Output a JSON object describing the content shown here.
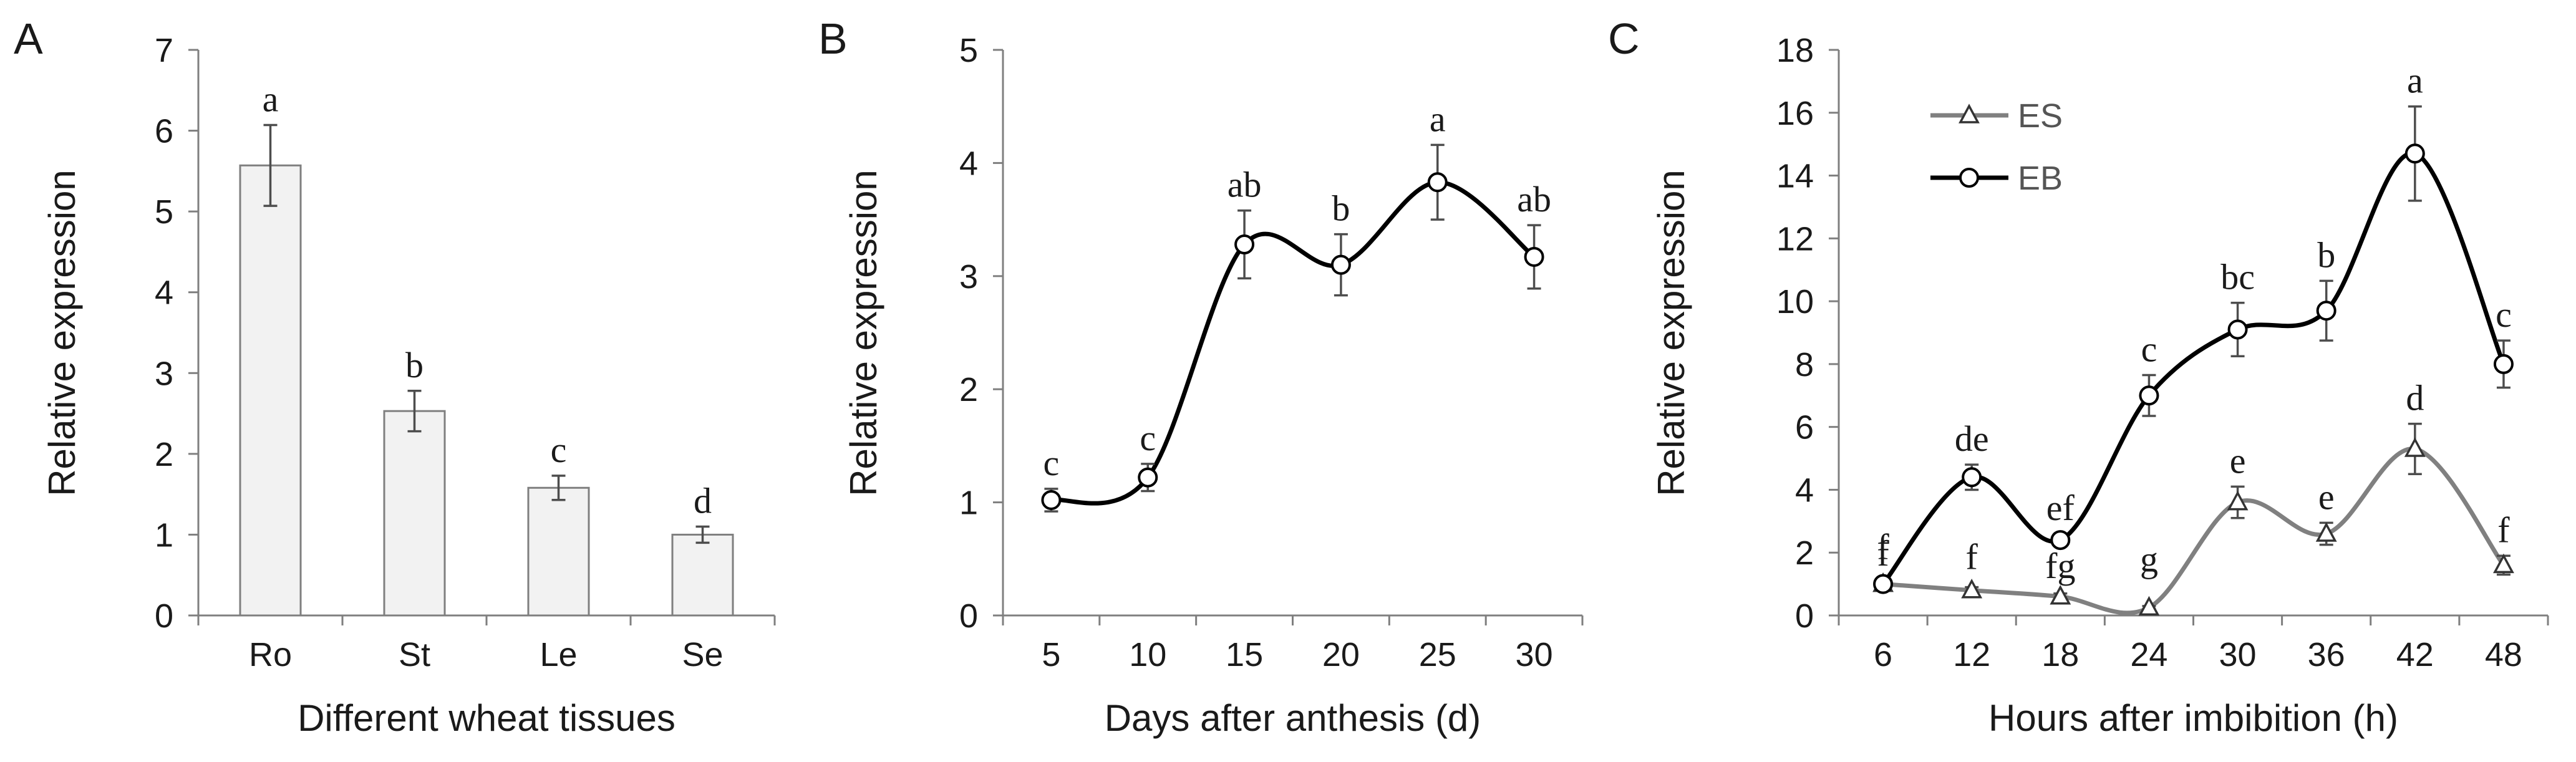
{
  "colors": {
    "axis": "#7f7f7f",
    "bar_fill": "#f2f2f2",
    "bar_stroke": "#7f7f7f",
    "eb_line": "#000000",
    "es_line": "#808080",
    "error_bar": "#4d4d4d"
  },
  "chart_data": [
    {
      "panel": "A",
      "type": "bar",
      "xlabel": "Different wheat tissues",
      "ylabel": "Relative expression",
      "ylim": [
        0,
        7
      ],
      "yticks": [
        "0",
        "1",
        "2",
        "3",
        "4",
        "5",
        "6",
        "7"
      ],
      "categories": [
        "Ro",
        "St",
        "Le",
        "Se"
      ],
      "values": [
        5.57,
        2.53,
        1.58,
        1.0
      ],
      "errors": [
        0.5,
        0.25,
        0.15,
        0.1
      ],
      "letters": [
        "a",
        "b",
        "c",
        "d"
      ]
    },
    {
      "panel": "B",
      "type": "line",
      "xlabel": "Days after anthesis (d)",
      "ylabel": "Relative expression",
      "ylim": [
        0,
        5
      ],
      "yticks": [
        "0",
        "1",
        "2",
        "3",
        "4",
        "5"
      ],
      "categories": [
        "5",
        "10",
        "15",
        "20",
        "25",
        "30"
      ],
      "series": [
        {
          "name": "",
          "values": [
            1.02,
            1.22,
            3.28,
            3.1,
            3.83,
            3.17
          ],
          "errors": [
            0.1,
            0.12,
            0.3,
            0.27,
            0.33,
            0.28
          ],
          "letters": [
            "c",
            "c",
            "ab",
            "b",
            "a",
            "ab"
          ]
        }
      ]
    },
    {
      "panel": "C",
      "type": "line",
      "xlabel": "Hours after imbibition (h)",
      "ylabel": "Relative expression",
      "ylim": [
        0,
        18
      ],
      "yticks": [
        "0",
        "2",
        "4",
        "6",
        "8",
        "10",
        "12",
        "14",
        "16",
        "18"
      ],
      "categories": [
        "6",
        "12",
        "18",
        "24",
        "30",
        "36",
        "42",
        "48"
      ],
      "legend": [
        "ES",
        "EB"
      ],
      "series": [
        {
          "name": "ES",
          "marker": "triangle",
          "values": [
            1.0,
            0.8,
            0.6,
            0.25,
            3.6,
            2.6,
            5.3,
            1.6
          ],
          "errors": [
            0.1,
            0.1,
            0.1,
            0.05,
            0.5,
            0.35,
            0.8,
            0.3
          ],
          "letters": [
            "",
            "",
            "fg",
            "g",
            "e",
            "e",
            "d",
            "f"
          ]
        },
        {
          "name": "EB",
          "marker": "circle",
          "values": [
            1.0,
            4.4,
            2.4,
            7.0,
            9.1,
            9.7,
            14.7,
            8.0
          ],
          "errors": [
            0.15,
            0.4,
            0.2,
            0.65,
            0.85,
            0.95,
            1.5,
            0.75
          ],
          "letters": [
            "f",
            "de",
            "ef",
            "c",
            "bc",
            "b",
            "a",
            "c"
          ]
        }
      ],
      "extra_letters": [
        "f",
        "f"
      ]
    }
  ]
}
